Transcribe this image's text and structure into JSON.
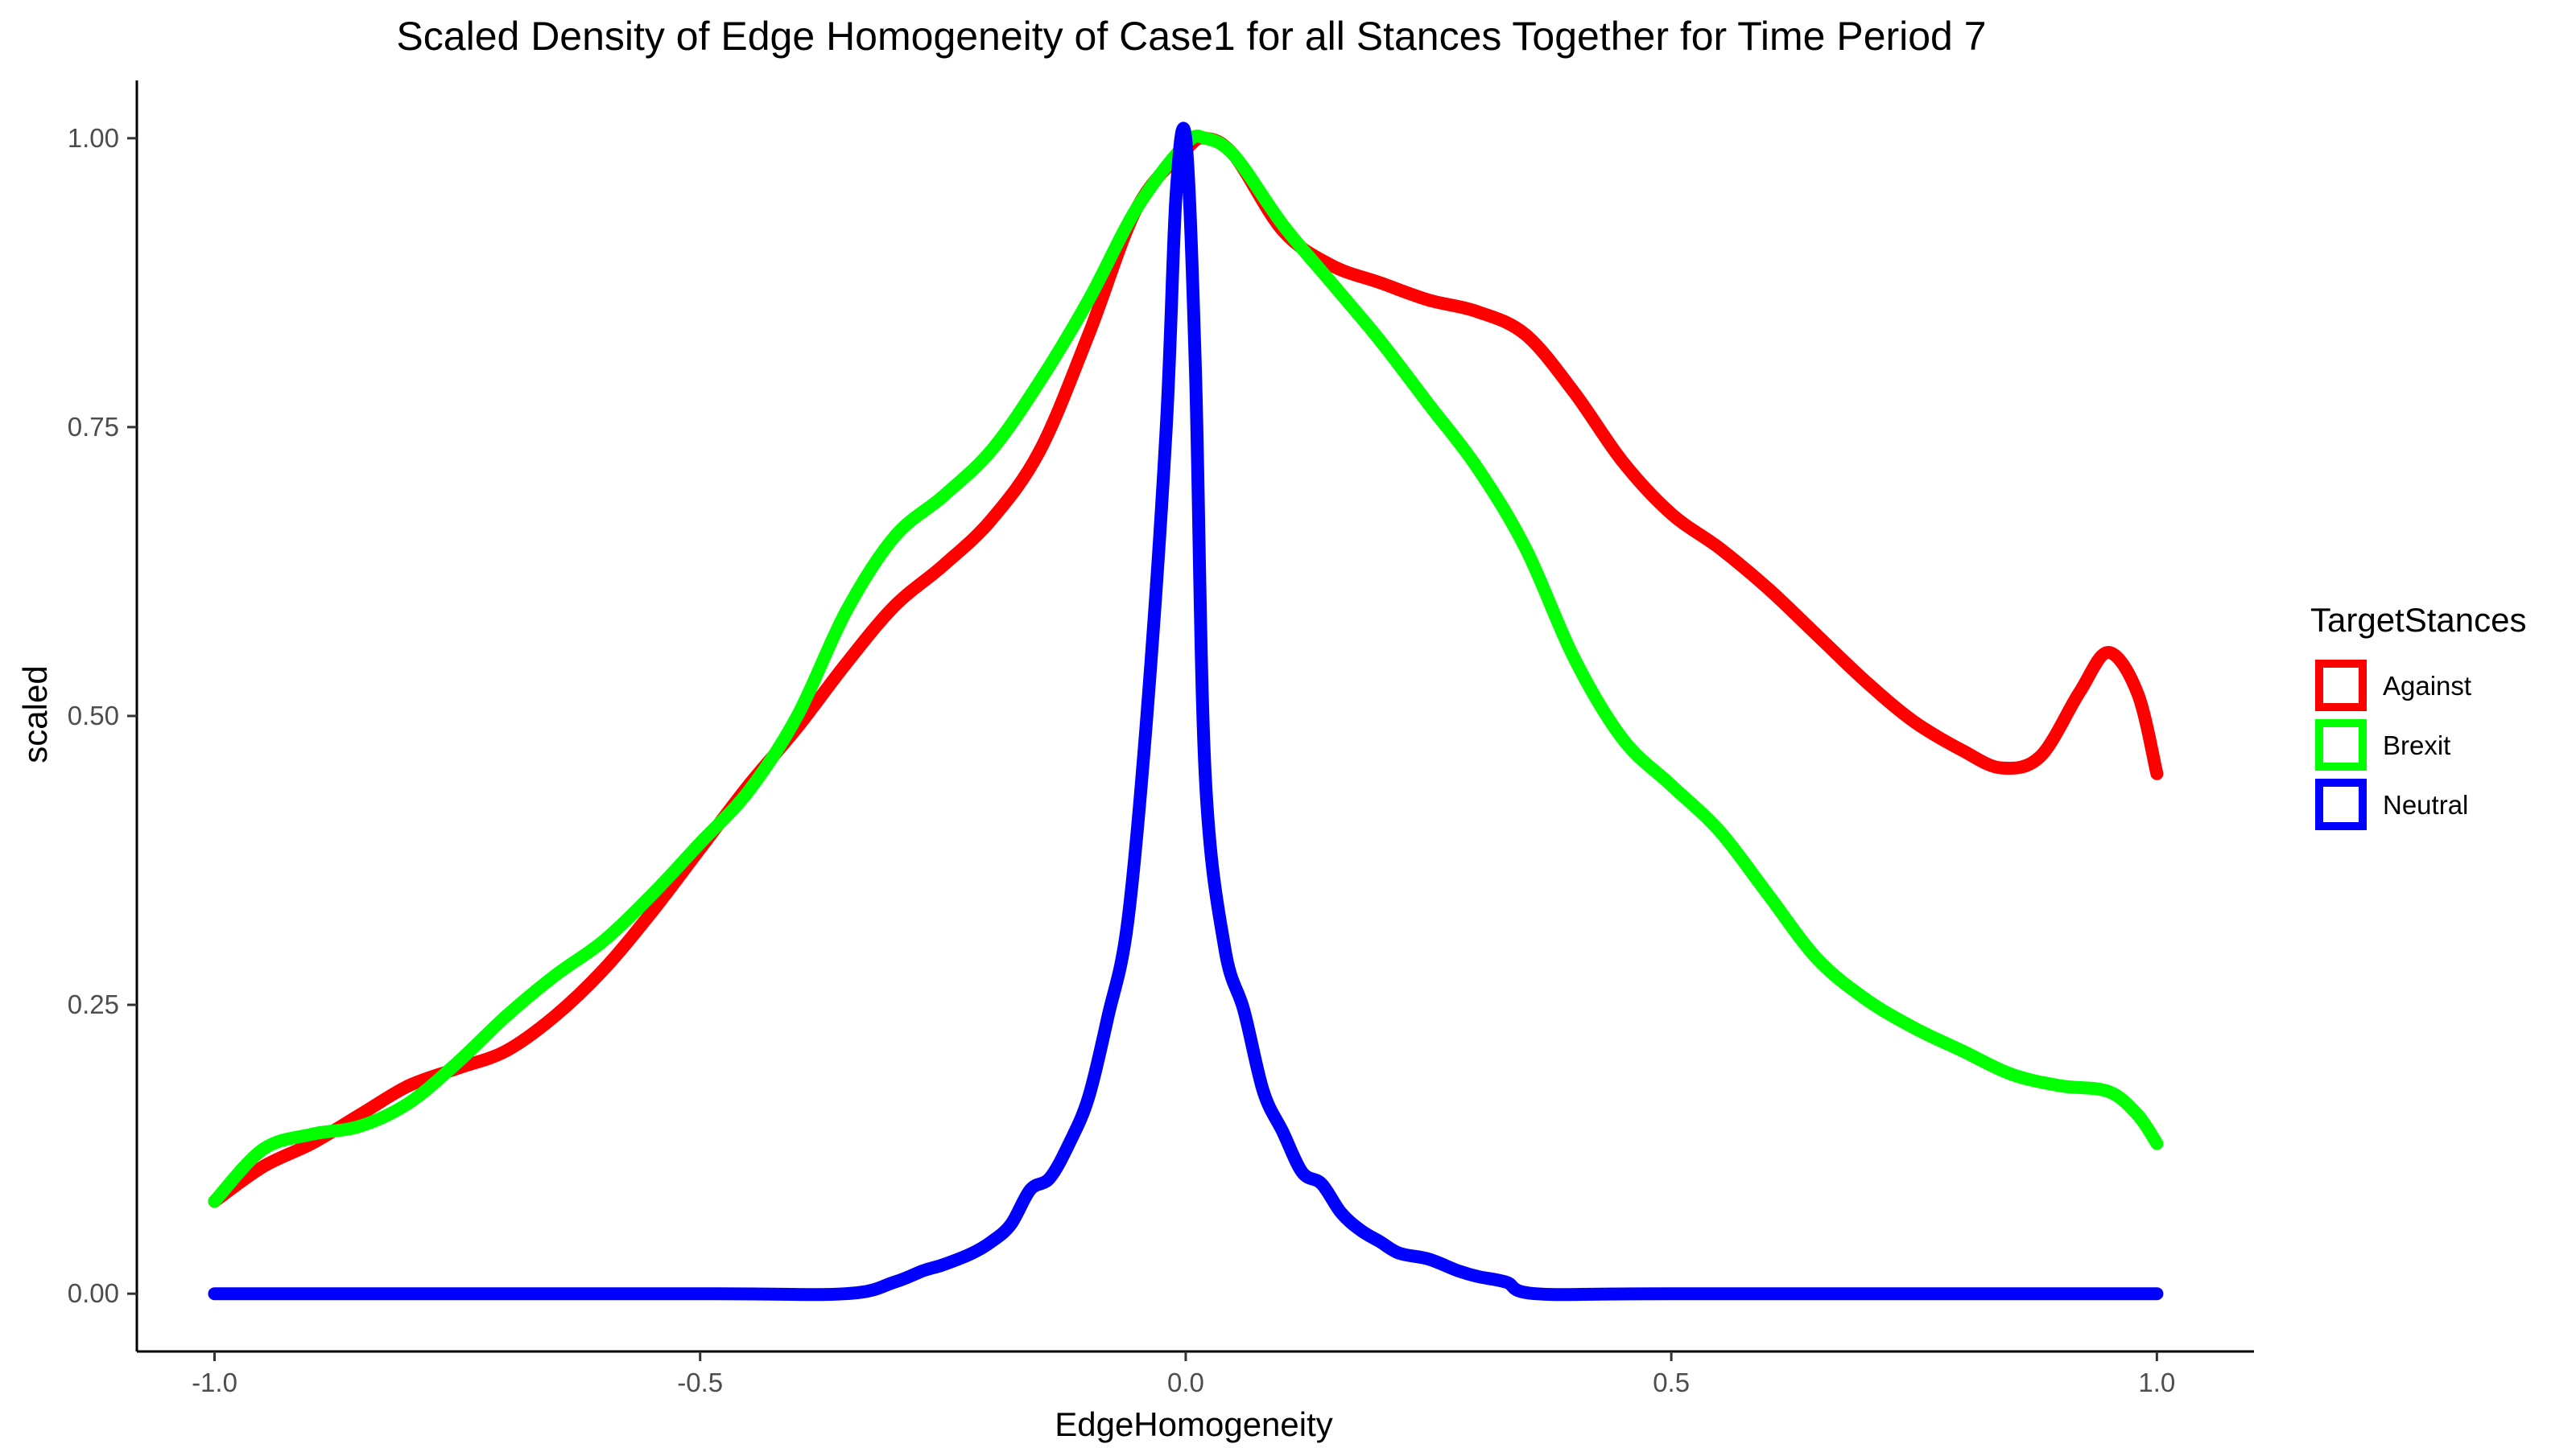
{
  "chart_data": {
    "type": "line",
    "title": "Scaled Density of Edge Homogeneity of Case1 for all Stances Together for Time Period 7",
    "xlabel": "EdgeHomogeneity",
    "ylabel": "scaled",
    "xlim": [
      -1.08,
      1.1
    ],
    "ylim": [
      -0.05,
      1.05
    ],
    "xticks": [
      -1.0,
      -0.5,
      0.0,
      0.5,
      1.0
    ],
    "xtick_labels": [
      "-1.0",
      "-0.5",
      "0.0",
      "0.5",
      "1.0"
    ],
    "yticks": [
      0.0,
      0.25,
      0.5,
      0.75,
      1.0
    ],
    "ytick_labels": [
      "0.00",
      "0.25",
      "0.50",
      "0.75",
      "1.00"
    ],
    "grid": false,
    "legend": {
      "title": "TargetStances",
      "position": "right"
    },
    "series": [
      {
        "name": "Against",
        "color": "#ff0000",
        "x": [
          -1.0,
          -0.95,
          -0.9,
          -0.85,
          -0.8,
          -0.75,
          -0.7,
          -0.65,
          -0.6,
          -0.55,
          -0.5,
          -0.45,
          -0.4,
          -0.35,
          -0.3,
          -0.25,
          -0.2,
          -0.15,
          -0.1,
          -0.05,
          0.0,
          0.02,
          0.05,
          0.1,
          0.15,
          0.2,
          0.25,
          0.3,
          0.35,
          0.4,
          0.45,
          0.5,
          0.55,
          0.6,
          0.65,
          0.7,
          0.75,
          0.8,
          0.84,
          0.88,
          0.92,
          0.95,
          0.98,
          1.0
        ],
        "y": [
          0.08,
          0.11,
          0.13,
          0.155,
          0.18,
          0.195,
          0.21,
          0.24,
          0.28,
          0.33,
          0.385,
          0.44,
          0.49,
          0.545,
          0.595,
          0.63,
          0.67,
          0.73,
          0.83,
          0.94,
          0.99,
          1.0,
          0.985,
          0.92,
          0.89,
          0.875,
          0.86,
          0.85,
          0.83,
          0.78,
          0.72,
          0.675,
          0.645,
          0.61,
          0.57,
          0.53,
          0.495,
          0.47,
          0.455,
          0.465,
          0.52,
          0.555,
          0.52,
          0.45
        ]
      },
      {
        "name": "Brexit",
        "color": "#00ff00",
        "x": [
          -1.0,
          -0.95,
          -0.9,
          -0.85,
          -0.8,
          -0.75,
          -0.7,
          -0.65,
          -0.6,
          -0.55,
          -0.5,
          -0.45,
          -0.4,
          -0.35,
          -0.3,
          -0.25,
          -0.2,
          -0.15,
          -0.1,
          -0.05,
          0.0,
          0.02,
          0.05,
          0.1,
          0.15,
          0.2,
          0.25,
          0.3,
          0.35,
          0.4,
          0.45,
          0.5,
          0.55,
          0.6,
          0.65,
          0.7,
          0.75,
          0.8,
          0.85,
          0.9,
          0.95,
          0.98,
          1.0
        ],
        "y": [
          0.08,
          0.125,
          0.138,
          0.145,
          0.165,
          0.2,
          0.24,
          0.275,
          0.305,
          0.345,
          0.39,
          0.435,
          0.5,
          0.59,
          0.655,
          0.69,
          0.73,
          0.79,
          0.86,
          0.94,
          0.995,
          1.0,
          0.985,
          0.925,
          0.875,
          0.825,
          0.77,
          0.715,
          0.645,
          0.55,
          0.48,
          0.44,
          0.4,
          0.345,
          0.29,
          0.255,
          0.23,
          0.21,
          0.19,
          0.18,
          0.175,
          0.155,
          0.13
        ]
      },
      {
        "name": "Neutral",
        "color": "#0000ff",
        "x": [
          -1.0,
          -0.5,
          -0.35,
          -0.3,
          -0.27,
          -0.25,
          -0.22,
          -0.2,
          -0.18,
          -0.16,
          -0.14,
          -0.12,
          -0.1,
          -0.08,
          -0.06,
          -0.04,
          -0.02,
          -0.01,
          0.0,
          0.01,
          0.02,
          0.04,
          0.06,
          0.08,
          0.1,
          0.12,
          0.14,
          0.16,
          0.18,
          0.2,
          0.22,
          0.25,
          0.28,
          0.3,
          0.33,
          0.36,
          0.5,
          1.0
        ],
        "y": [
          0.0,
          0.0,
          0.0,
          0.01,
          0.02,
          0.025,
          0.035,
          0.045,
          0.06,
          0.09,
          0.1,
          0.13,
          0.17,
          0.24,
          0.32,
          0.5,
          0.75,
          0.95,
          1.0,
          0.8,
          0.45,
          0.3,
          0.245,
          0.175,
          0.14,
          0.105,
          0.095,
          0.07,
          0.055,
          0.045,
          0.035,
          0.03,
          0.02,
          0.015,
          0.01,
          0.0,
          0.0,
          0.0
        ]
      }
    ]
  }
}
